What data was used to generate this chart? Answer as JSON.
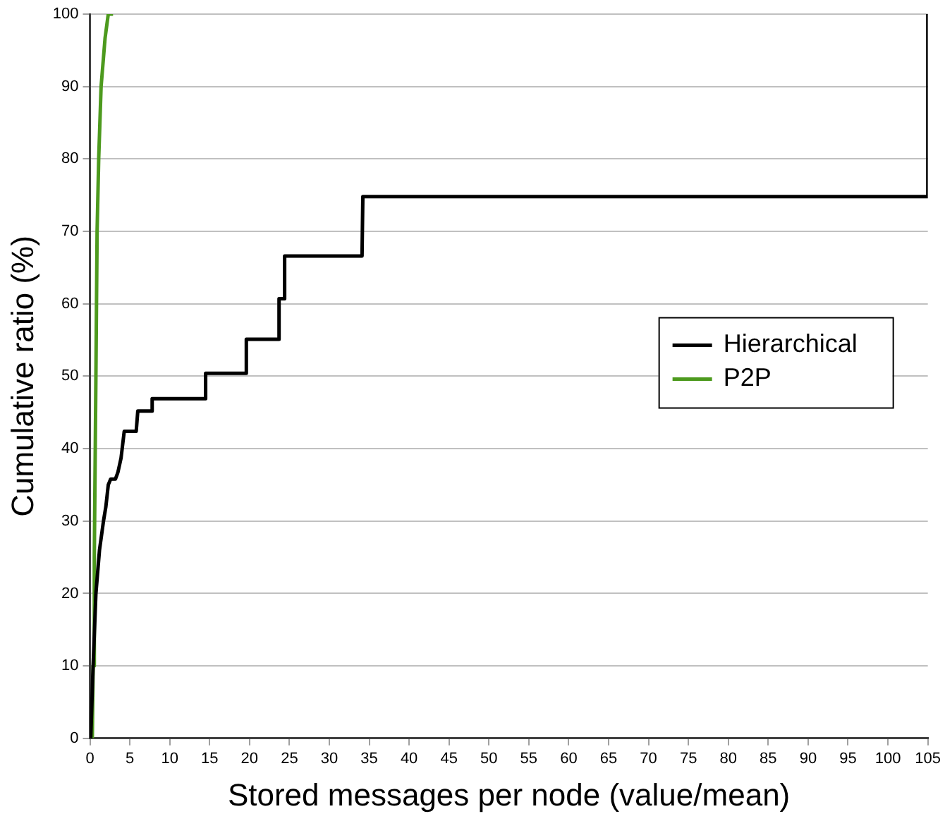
{
  "chart_data": {
    "type": "line",
    "xlabel": "Stored messages per node (value/mean)",
    "ylabel": "Cumulative ratio (%)",
    "xlim": [
      0,
      105
    ],
    "xticks": [
      0,
      5,
      10,
      15,
      20,
      25,
      30,
      35,
      40,
      45,
      50,
      55,
      60,
      65,
      70,
      75,
      80,
      85,
      90,
      95,
      100,
      105
    ],
    "ylim": [
      0,
      100
    ],
    "yticks": [
      0,
      10,
      20,
      30,
      40,
      50,
      60,
      70,
      80,
      90,
      100
    ],
    "grid": "y",
    "legend": "right",
    "marker": "none",
    "line_style": "solid",
    "series": [
      {
        "name": "Hierarchical",
        "color": "#000000",
        "x": [
          0.1,
          0.4,
          0.75,
          1.2,
          1.7,
          2.0,
          2.3,
          2.6,
          3.2,
          3.5,
          3.9,
          4.3,
          5.8,
          6.0,
          7.7,
          7.8,
          14.4,
          14.5,
          19.5,
          19.6,
          23.6,
          23.7,
          24.3,
          24.4,
          34.1,
          34.2,
          104.9,
          105
        ],
        "values": [
          0,
          10,
          20,
          26,
          30,
          32,
          35,
          35.8,
          35.8,
          36.7,
          38.7,
          42.4,
          42.4,
          45.2,
          45.2,
          46.9,
          46.9,
          50.4,
          50.4,
          55.1,
          55.1,
          60.7,
          60.7,
          66.6,
          66.6,
          74.8,
          74.8,
          100
        ]
      },
      {
        "name": "P2P",
        "color": "#4d9a1e",
        "x": [
          0.3,
          0.4,
          0.55,
          0.75,
          0.9,
          1.1,
          1.4,
          1.9,
          2.3,
          2.9
        ],
        "values": [
          0,
          10,
          25,
          50,
          70,
          80,
          90,
          96.7,
          100,
          100
        ]
      }
    ]
  }
}
